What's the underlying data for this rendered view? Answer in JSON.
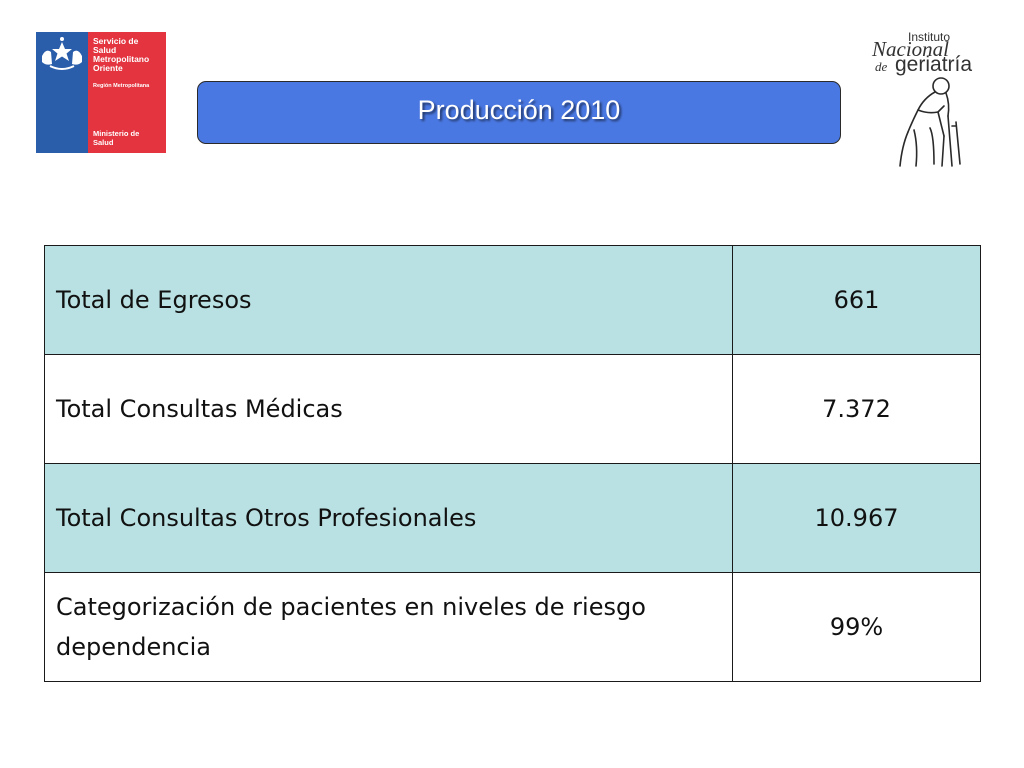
{
  "logos": {
    "left": {
      "org_lines": [
        "Servicio de",
        "Salud",
        "Metropolitano",
        "Oriente"
      ],
      "region": "Región Metropolitana",
      "ministry_lines": [
        "Ministerio de",
        "Salud"
      ],
      "colors": {
        "blue": "#2a5daa",
        "red": "#e3343f"
      }
    },
    "right": {
      "instituto": "Instituto",
      "nacional": "Nacional",
      "de": "de",
      "geriatria": "geriatría"
    }
  },
  "title": "Producción 2010",
  "colors": {
    "title_bar": "#4a78e2",
    "row_shaded": "#b9e0e2",
    "row_plain": "#ffffff"
  },
  "table": {
    "rows": [
      {
        "label": "Total de Egresos",
        "value": "661",
        "shaded": true
      },
      {
        "label": "Total Consultas Médicas",
        "value": "7.372",
        "shaded": false
      },
      {
        "label": "Total Consultas Otros Profesionales",
        "value": "10.967",
        "shaded": true
      },
      {
        "label": "Categorización de pacientes en niveles de riesgo dependencia",
        "value": "99%",
        "shaded": false
      }
    ]
  }
}
